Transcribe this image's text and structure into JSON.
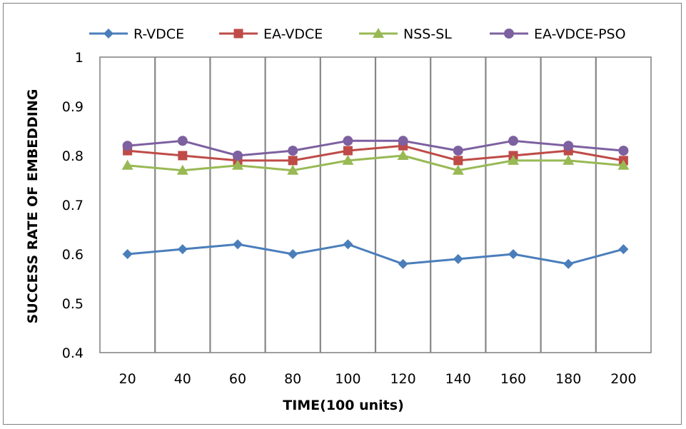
{
  "chart_data": {
    "type": "line",
    "title": "",
    "xlabel": "TIME(100 units)",
    "ylabel": "SUCCESS RATE OF EMBEDDING",
    "categories": [
      "20",
      "40",
      "60",
      "80",
      "100",
      "120",
      "140",
      "160",
      "180",
      "200"
    ],
    "ylim": [
      0.4,
      1
    ],
    "yticks": [
      "0.4",
      "0.5",
      "0.6",
      "0.7",
      "0.8",
      "0.9",
      "1"
    ],
    "legend_position": "top",
    "grid": "vertical",
    "series": [
      {
        "name": "R-VDCE",
        "color": "#4a7ebb",
        "marker": "diamond",
        "values": [
          0.6,
          0.61,
          0.62,
          0.6,
          0.62,
          0.58,
          0.59,
          0.6,
          0.58,
          0.61
        ]
      },
      {
        "name": "EA-VDCE",
        "color": "#be4b48",
        "marker": "square",
        "values": [
          0.81,
          0.8,
          0.79,
          0.79,
          0.81,
          0.82,
          0.79,
          0.8,
          0.81,
          0.79
        ]
      },
      {
        "name": "NSS-SL",
        "color": "#98b954",
        "marker": "triangle",
        "values": [
          0.78,
          0.77,
          0.78,
          0.77,
          0.79,
          0.8,
          0.77,
          0.79,
          0.79,
          0.78
        ]
      },
      {
        "name": "EA-VDCE-PSO",
        "color": "#7d60a0",
        "marker": "circle",
        "values": [
          0.82,
          0.83,
          0.8,
          0.81,
          0.83,
          0.83,
          0.81,
          0.83,
          0.82,
          0.81
        ]
      }
    ]
  }
}
